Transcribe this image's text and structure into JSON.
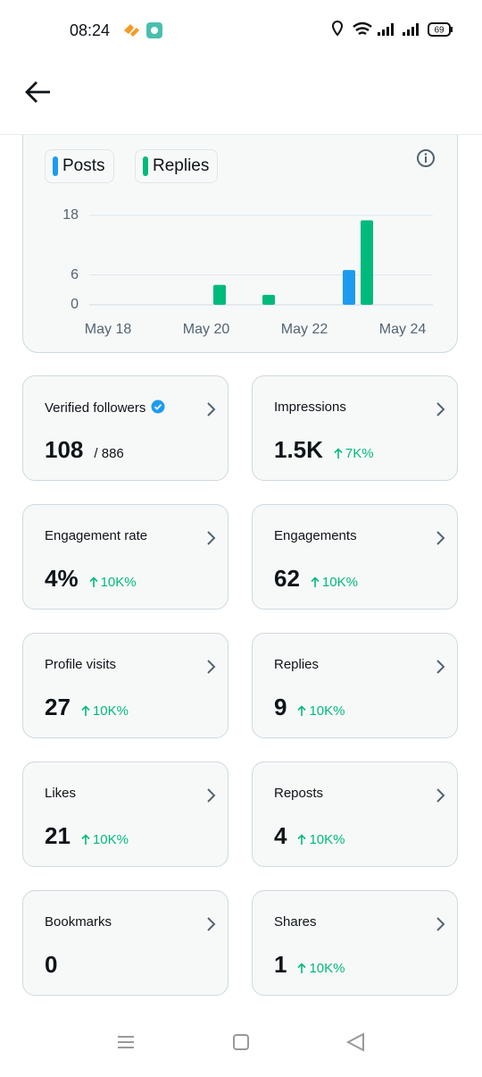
{
  "status_bar": {
    "time": "08:24",
    "battery": "69"
  },
  "chart_data": {
    "type": "bar",
    "categories": [
      "May 18",
      null,
      "May 20",
      null,
      "May 22",
      null,
      "May 24"
    ],
    "series": [
      {
        "name": "Posts",
        "color": "#1d9bf0",
        "values": [
          0,
          0,
          0,
          0,
          0,
          7,
          0
        ]
      },
      {
        "name": "Replies",
        "color": "#00ba7c",
        "values": [
          0,
          0,
          4,
          2,
          0,
          17,
          0
        ]
      }
    ],
    "ylim": [
      0,
      18
    ],
    "yticks": [
      0,
      6,
      18
    ],
    "grid": true
  },
  "cards": [
    {
      "label": "Verified followers",
      "value": "108",
      "total": "/ 886"
    },
    {
      "label": "Impressions",
      "value": "1.5K",
      "change": "7K%"
    },
    {
      "label": "Engagement rate",
      "value": "4%",
      "change": "10K%"
    },
    {
      "label": "Engagements",
      "value": "62",
      "change": "10K%"
    },
    {
      "label": "Profile visits",
      "value": "27",
      "change": "10K%"
    },
    {
      "label": "Replies",
      "value": "9",
      "change": "10K%"
    },
    {
      "label": "Likes",
      "value": "21",
      "change": "10K%"
    },
    {
      "label": "Reposts",
      "value": "4",
      "change": "10K%"
    },
    {
      "label": "Bookmarks",
      "value": "0"
    },
    {
      "label": "Shares",
      "value": "1",
      "change": "10K%"
    }
  ]
}
